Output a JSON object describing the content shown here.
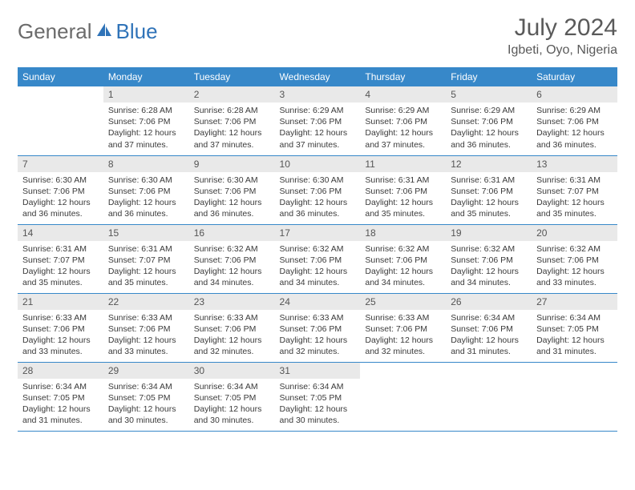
{
  "logo": {
    "part1": "General",
    "part2": "Blue"
  },
  "title": "July 2024",
  "location": "Igbeti, Oyo, Nigeria",
  "colors": {
    "header_bg": "#3788c9",
    "header_fg": "#ffffff",
    "daynum_bg": "#e9e9e9",
    "text": "#3a3a3a",
    "logo_gray": "#6b6b6b",
    "logo_blue": "#2f73b8",
    "border": "#3788c9"
  },
  "dayNames": [
    "Sunday",
    "Monday",
    "Tuesday",
    "Wednesday",
    "Thursday",
    "Friday",
    "Saturday"
  ],
  "weeks": [
    [
      {
        "n": "",
        "sr": "",
        "ss": "",
        "dl": ""
      },
      {
        "n": "1",
        "sr": "6:28 AM",
        "ss": "7:06 PM",
        "dl": "12 hours and 37 minutes."
      },
      {
        "n": "2",
        "sr": "6:28 AM",
        "ss": "7:06 PM",
        "dl": "12 hours and 37 minutes."
      },
      {
        "n": "3",
        "sr": "6:29 AM",
        "ss": "7:06 PM",
        "dl": "12 hours and 37 minutes."
      },
      {
        "n": "4",
        "sr": "6:29 AM",
        "ss": "7:06 PM",
        "dl": "12 hours and 37 minutes."
      },
      {
        "n": "5",
        "sr": "6:29 AM",
        "ss": "7:06 PM",
        "dl": "12 hours and 36 minutes."
      },
      {
        "n": "6",
        "sr": "6:29 AM",
        "ss": "7:06 PM",
        "dl": "12 hours and 36 minutes."
      }
    ],
    [
      {
        "n": "7",
        "sr": "6:30 AM",
        "ss": "7:06 PM",
        "dl": "12 hours and 36 minutes."
      },
      {
        "n": "8",
        "sr": "6:30 AM",
        "ss": "7:06 PM",
        "dl": "12 hours and 36 minutes."
      },
      {
        "n": "9",
        "sr": "6:30 AM",
        "ss": "7:06 PM",
        "dl": "12 hours and 36 minutes."
      },
      {
        "n": "10",
        "sr": "6:30 AM",
        "ss": "7:06 PM",
        "dl": "12 hours and 36 minutes."
      },
      {
        "n": "11",
        "sr": "6:31 AM",
        "ss": "7:06 PM",
        "dl": "12 hours and 35 minutes."
      },
      {
        "n": "12",
        "sr": "6:31 AM",
        "ss": "7:06 PM",
        "dl": "12 hours and 35 minutes."
      },
      {
        "n": "13",
        "sr": "6:31 AM",
        "ss": "7:07 PM",
        "dl": "12 hours and 35 minutes."
      }
    ],
    [
      {
        "n": "14",
        "sr": "6:31 AM",
        "ss": "7:07 PM",
        "dl": "12 hours and 35 minutes."
      },
      {
        "n": "15",
        "sr": "6:31 AM",
        "ss": "7:07 PM",
        "dl": "12 hours and 35 minutes."
      },
      {
        "n": "16",
        "sr": "6:32 AM",
        "ss": "7:06 PM",
        "dl": "12 hours and 34 minutes."
      },
      {
        "n": "17",
        "sr": "6:32 AM",
        "ss": "7:06 PM",
        "dl": "12 hours and 34 minutes."
      },
      {
        "n": "18",
        "sr": "6:32 AM",
        "ss": "7:06 PM",
        "dl": "12 hours and 34 minutes."
      },
      {
        "n": "19",
        "sr": "6:32 AM",
        "ss": "7:06 PM",
        "dl": "12 hours and 34 minutes."
      },
      {
        "n": "20",
        "sr": "6:32 AM",
        "ss": "7:06 PM",
        "dl": "12 hours and 33 minutes."
      }
    ],
    [
      {
        "n": "21",
        "sr": "6:33 AM",
        "ss": "7:06 PM",
        "dl": "12 hours and 33 minutes."
      },
      {
        "n": "22",
        "sr": "6:33 AM",
        "ss": "7:06 PM",
        "dl": "12 hours and 33 minutes."
      },
      {
        "n": "23",
        "sr": "6:33 AM",
        "ss": "7:06 PM",
        "dl": "12 hours and 32 minutes."
      },
      {
        "n": "24",
        "sr": "6:33 AM",
        "ss": "7:06 PM",
        "dl": "12 hours and 32 minutes."
      },
      {
        "n": "25",
        "sr": "6:33 AM",
        "ss": "7:06 PM",
        "dl": "12 hours and 32 minutes."
      },
      {
        "n": "26",
        "sr": "6:34 AM",
        "ss": "7:06 PM",
        "dl": "12 hours and 31 minutes."
      },
      {
        "n": "27",
        "sr": "6:34 AM",
        "ss": "7:05 PM",
        "dl": "12 hours and 31 minutes."
      }
    ],
    [
      {
        "n": "28",
        "sr": "6:34 AM",
        "ss": "7:05 PM",
        "dl": "12 hours and 31 minutes."
      },
      {
        "n": "29",
        "sr": "6:34 AM",
        "ss": "7:05 PM",
        "dl": "12 hours and 30 minutes."
      },
      {
        "n": "30",
        "sr": "6:34 AM",
        "ss": "7:05 PM",
        "dl": "12 hours and 30 minutes."
      },
      {
        "n": "31",
        "sr": "6:34 AM",
        "ss": "7:05 PM",
        "dl": "12 hours and 30 minutes."
      },
      {
        "n": "",
        "sr": "",
        "ss": "",
        "dl": ""
      },
      {
        "n": "",
        "sr": "",
        "ss": "",
        "dl": ""
      },
      {
        "n": "",
        "sr": "",
        "ss": "",
        "dl": ""
      }
    ]
  ],
  "labels": {
    "sunrise": "Sunrise:",
    "sunset": "Sunset:",
    "daylight": "Daylight:"
  }
}
